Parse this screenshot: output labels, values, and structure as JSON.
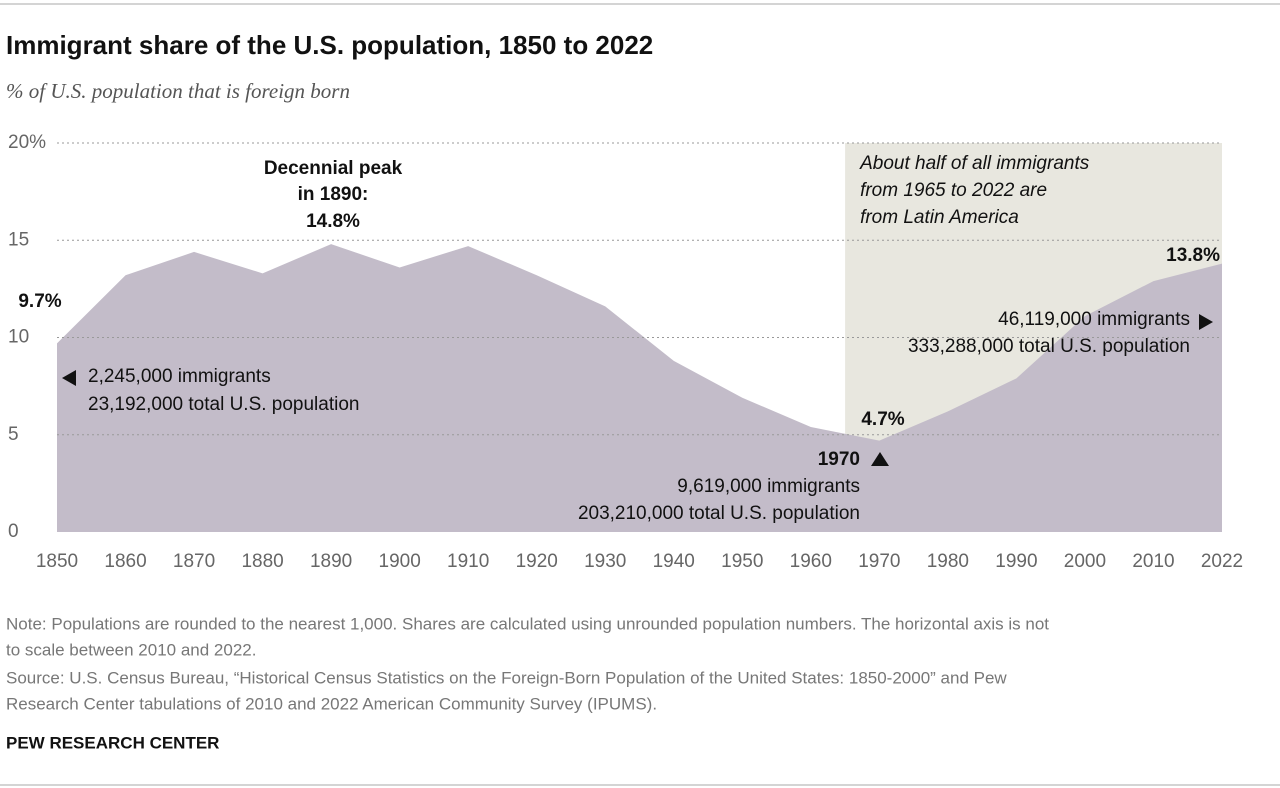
{
  "chart_data": {
    "type": "area",
    "title": "Immigrant share of the U.S. population, 1850 to 2022",
    "subtitle": "% of U.S. population that is foreign born",
    "categories": [
      "1850",
      "1860",
      "1870",
      "1880",
      "1890",
      "1900",
      "1910",
      "1920",
      "1930",
      "1940",
      "1950",
      "1960",
      "1970",
      "1980",
      "1990",
      "2000",
      "2010",
      "2022"
    ],
    "values": [
      9.7,
      13.2,
      14.4,
      13.3,
      14.8,
      13.6,
      14.7,
      13.2,
      11.6,
      8.8,
      6.9,
      5.4,
      4.7,
      6.2,
      7.9,
      11.1,
      12.9,
      13.8
    ],
    "value_labels": [
      "9.7%",
      null,
      null,
      null,
      "14.8%",
      null,
      null,
      null,
      null,
      null,
      null,
      null,
      "4.7%",
      null,
      null,
      null,
      null,
      "13.8%"
    ],
    "color": "#c3bcc9",
    "ylim": [
      0,
      20
    ],
    "yticks": [
      0,
      5,
      10,
      15,
      {
        "value": 20,
        "label": "20%"
      }
    ],
    "grid": true,
    "highlight": {
      "start": 1965,
      "end": 2022,
      "color": "#e8e7df",
      "lines": [
        "About half of all immigrants",
        "from 1965 to 2022 are",
        "from Latin America"
      ]
    },
    "annotations": [
      {
        "lines": [
          "Decennial peak",
          "in 1890:"
        ]
      },
      {
        "lines": [
          "2,245,000 immigrants",
          "23,192,000 total U.S. population"
        ]
      },
      {
        "label": "1970",
        "lines": [
          "9,619,000 immigrants",
          "203,210,000 total U.S. population"
        ]
      },
      {
        "lines": [
          "46,119,000 immigrants",
          "333,288,000 total U.S. population"
        ]
      }
    ],
    "note": "Note: Populations are rounded to the nearest 1,000. Shares are calculated using unrounded population numbers. The horizontal axis is not",
    "note_cont": "to scale between 2010 and 2022.",
    "source": "Source: U.S. Census Bureau, “Historical Census Statistics on the Foreign-Born Population of the United States: 1850-2000” and Pew",
    "source_cont": "Research Center tabulations of 2010 and 2022 American Community Survey (IPUMS).",
    "brand": "PEW RESEARCH CENTER"
  }
}
